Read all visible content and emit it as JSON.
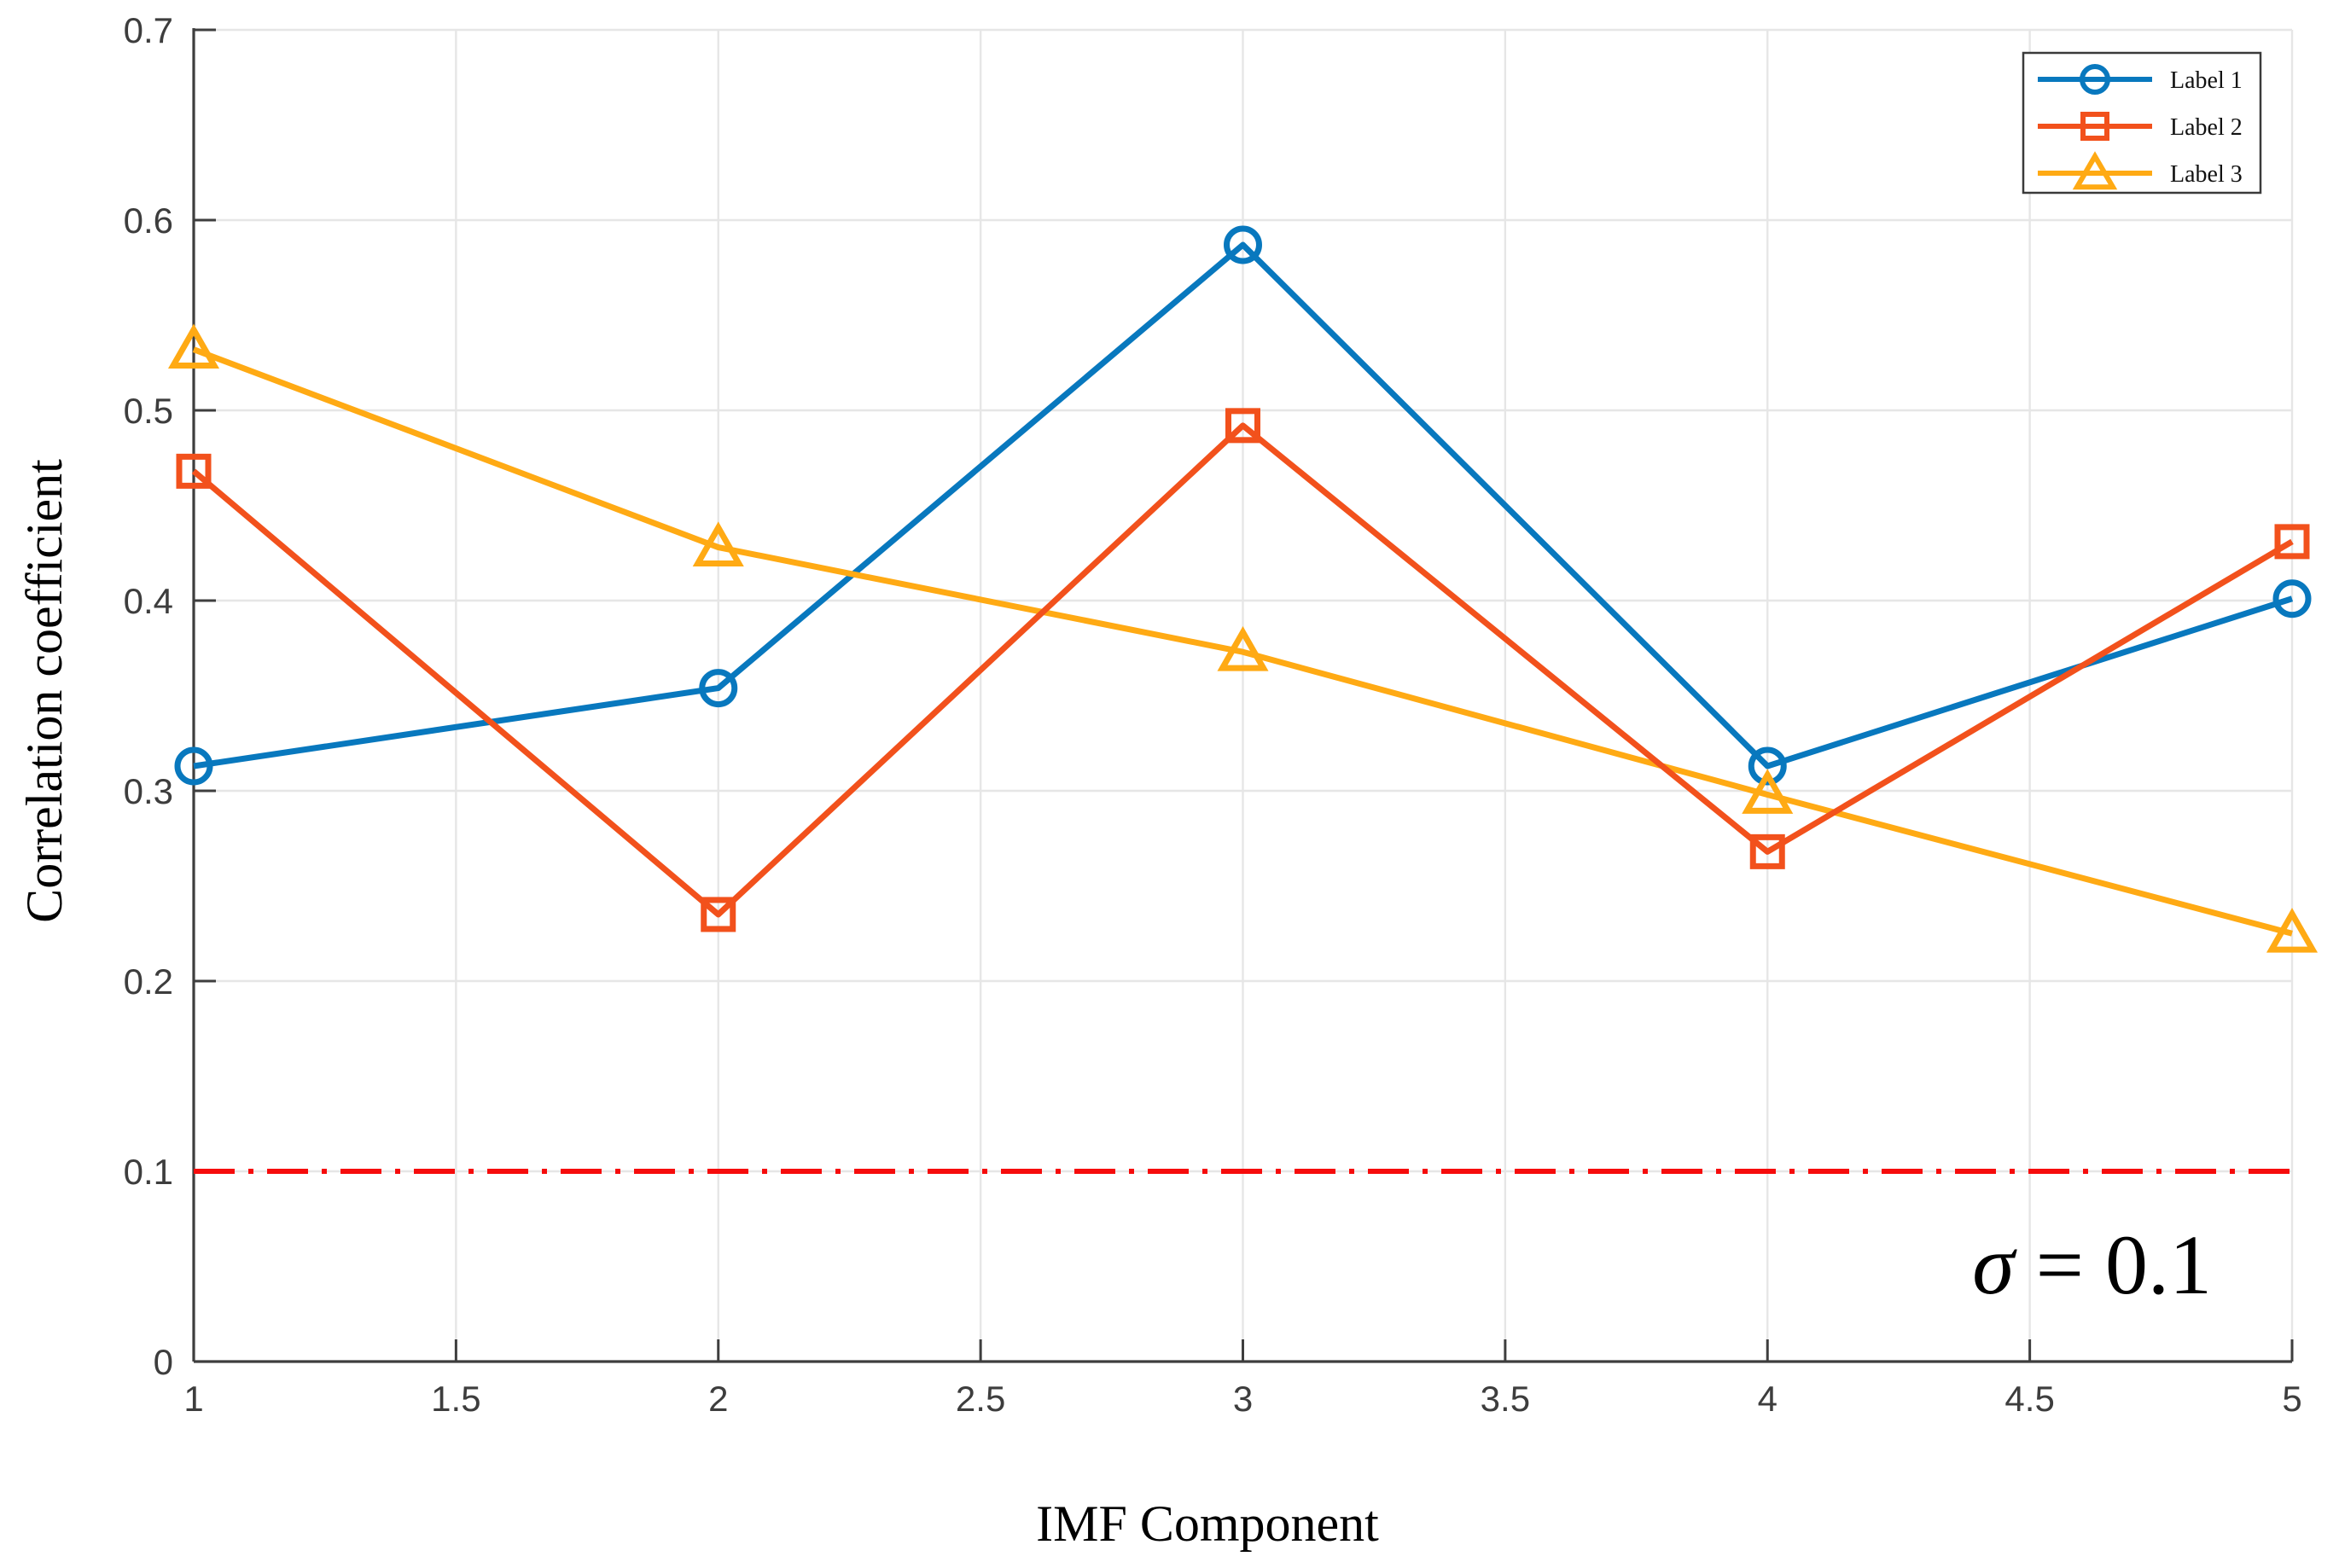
{
  "chart_data": {
    "type": "line",
    "title": "",
    "xlabel": "IMF Component",
    "ylabel": "Correlation coefficient",
    "x": [
      1,
      2,
      3,
      4,
      5
    ],
    "xlim": [
      1,
      5
    ],
    "ylim": [
      0,
      0.7
    ],
    "xticks": [
      1,
      1.5,
      2,
      2.5,
      3,
      3.5,
      4,
      4.5,
      5
    ],
    "yticks": [
      0,
      0.1,
      0.2,
      0.3,
      0.4,
      0.5,
      0.6,
      0.7
    ],
    "grid": true,
    "legend_position": "top-right",
    "series": [
      {
        "name": "Label 1",
        "marker": "circle",
        "color": "#0878be",
        "values": [
          0.313,
          0.354,
          0.587,
          0.313,
          0.401
        ]
      },
      {
        "name": "Label 2",
        "marker": "square",
        "color": "#f2511c",
        "values": [
          0.468,
          0.235,
          0.492,
          0.268,
          0.431
        ]
      },
      {
        "name": "Label 3",
        "marker": "triangle",
        "color": "#ffaa14",
        "values": [
          0.532,
          0.428,
          0.373,
          0.298,
          0.225
        ]
      }
    ],
    "threshold_line": {
      "value": 0.1,
      "color": "#f60c0c",
      "style": "dash-dot"
    },
    "annotation": {
      "sigma": "σ",
      "rest": " = 0.1",
      "text": "σ = 0.1"
    },
    "style_colors": {
      "axis": "#3e3e3e",
      "grid": "#e6e6e6",
      "tick_text": "#3d3d3d",
      "legend_border": "#3a3a3a",
      "background": "#ffffff"
    }
  }
}
